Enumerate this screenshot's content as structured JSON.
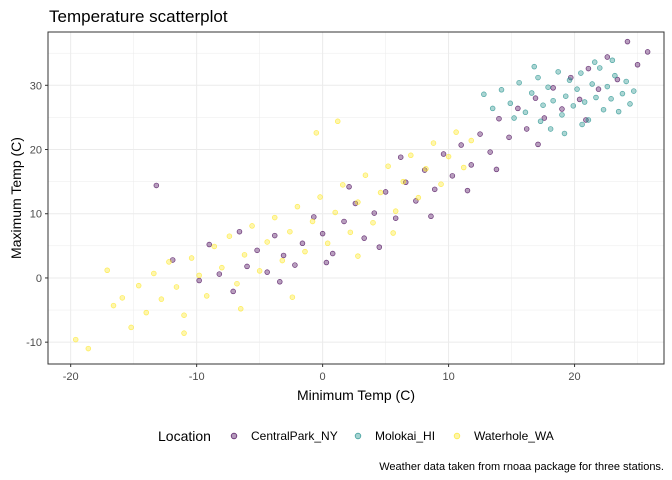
{
  "chart_data": {
    "type": "scatter",
    "title": "Temperature scatterplot",
    "xlabel": "Minimum Temp (C)",
    "ylabel": "Maximum Temp (C)",
    "caption": "Weather data taken from rnoaa package for three stations.",
    "xlim": [
      -21.8,
      27.1
    ],
    "ylim": [
      -13.4,
      38.3
    ],
    "x_ticks": [
      -20,
      -10,
      0,
      10,
      20
    ],
    "x_tick_labels": [
      "-20",
      "-10",
      "0",
      "10",
      "20"
    ],
    "y_ticks": [
      -10,
      0,
      10,
      20,
      30
    ],
    "y_tick_labels": [
      "-10",
      "0",
      "10",
      "20",
      "30"
    ],
    "grid": true,
    "legend": {
      "title": "Location",
      "position": "bottom"
    },
    "series": [
      {
        "name": "CentralPark_NY",
        "color": "#440154",
        "points": [
          [
            -13.2,
            14.4
          ],
          [
            -11.9,
            2.8
          ],
          [
            -9.8,
            -0.4
          ],
          [
            -8.2,
            0.6
          ],
          [
            -7.1,
            -2.1
          ],
          [
            -6.0,
            1.8
          ],
          [
            -5.2,
            4.3
          ],
          [
            -4.4,
            0.9
          ],
          [
            -3.8,
            6.6
          ],
          [
            -3.1,
            3.5
          ],
          [
            -2.2,
            2.0
          ],
          [
            -1.6,
            5.4
          ],
          [
            -0.7,
            9.5
          ],
          [
            0.0,
            6.9
          ],
          [
            0.8,
            3.8
          ],
          [
            1.7,
            8.8
          ],
          [
            2.6,
            11.6
          ],
          [
            3.3,
            6.2
          ],
          [
            4.1,
            10.1
          ],
          [
            5.0,
            13.4
          ],
          [
            5.8,
            9.3
          ],
          [
            6.6,
            14.9
          ],
          [
            7.4,
            12.0
          ],
          [
            8.1,
            16.8
          ],
          [
            8.9,
            13.8
          ],
          [
            9.6,
            19.3
          ],
          [
            10.3,
            15.9
          ],
          [
            11.0,
            20.7
          ],
          [
            11.8,
            17.6
          ],
          [
            12.5,
            22.4
          ],
          [
            13.3,
            19.6
          ],
          [
            14.0,
            24.8
          ],
          [
            14.8,
            21.9
          ],
          [
            15.5,
            26.4
          ],
          [
            16.2,
            23.2
          ],
          [
            16.9,
            28.0
          ],
          [
            17.6,
            24.9
          ],
          [
            18.3,
            29.6
          ],
          [
            19.0,
            26.3
          ],
          [
            19.7,
            31.2
          ],
          [
            20.4,
            27.8
          ],
          [
            21.1,
            32.6
          ],
          [
            21.9,
            29.4
          ],
          [
            22.6,
            34.4
          ],
          [
            23.4,
            30.9
          ],
          [
            24.2,
            36.8
          ],
          [
            25.0,
            33.2
          ],
          [
            25.8,
            35.2
          ],
          [
            -9.0,
            5.2
          ],
          [
            -6.6,
            7.2
          ],
          [
            2.1,
            14.2
          ],
          [
            6.2,
            18.8
          ],
          [
            11.5,
            13.6
          ],
          [
            13.8,
            16.9
          ],
          [
            17.1,
            20.8
          ],
          [
            20.9,
            24.6
          ],
          [
            -3.4,
            -0.6
          ],
          [
            0.3,
            2.4
          ],
          [
            4.5,
            4.8
          ],
          [
            8.6,
            9.6
          ]
        ]
      },
      {
        "name": "Molokai_HI",
        "color": "#21908C",
        "points": [
          [
            12.8,
            28.6
          ],
          [
            13.5,
            26.4
          ],
          [
            14.2,
            29.3
          ],
          [
            14.9,
            27.2
          ],
          [
            15.6,
            30.4
          ],
          [
            16.1,
            25.8
          ],
          [
            16.6,
            28.8
          ],
          [
            17.1,
            31.2
          ],
          [
            17.5,
            26.9
          ],
          [
            17.9,
            29.7
          ],
          [
            18.3,
            27.6
          ],
          [
            18.7,
            32.1
          ],
          [
            19.0,
            25.4
          ],
          [
            19.3,
            28.3
          ],
          [
            19.6,
            30.8
          ],
          [
            19.9,
            26.8
          ],
          [
            20.2,
            29.4
          ],
          [
            20.5,
            31.9
          ],
          [
            20.8,
            27.4
          ],
          [
            21.1,
            24.6
          ],
          [
            21.4,
            30.2
          ],
          [
            21.7,
            28.1
          ],
          [
            22.0,
            32.7
          ],
          [
            22.3,
            26.2
          ],
          [
            22.6,
            29.8
          ],
          [
            22.9,
            27.9
          ],
          [
            23.2,
            31.5
          ],
          [
            23.5,
            25.9
          ],
          [
            23.8,
            28.7
          ],
          [
            24.1,
            30.6
          ],
          [
            24.4,
            27.1
          ],
          [
            24.7,
            29.1
          ],
          [
            18.1,
            23.2
          ],
          [
            19.2,
            22.5
          ],
          [
            20.6,
            23.9
          ],
          [
            17.3,
            24.4
          ],
          [
            21.6,
            33.6
          ],
          [
            16.8,
            32.9
          ],
          [
            15.2,
            24.9
          ],
          [
            23.0,
            33.9
          ]
        ]
      },
      {
        "name": "Waterhole_WA",
        "color": "#FDE725",
        "points": [
          [
            -19.6,
            -9.6
          ],
          [
            -18.6,
            -11.0
          ],
          [
            -17.1,
            1.2
          ],
          [
            -16.6,
            -4.3
          ],
          [
            -15.9,
            -3.1
          ],
          [
            -15.2,
            -7.7
          ],
          [
            -14.6,
            -1.2
          ],
          [
            -14.0,
            -5.4
          ],
          [
            -13.4,
            0.7
          ],
          [
            -12.8,
            -3.3
          ],
          [
            -12.2,
            2.5
          ],
          [
            -11.6,
            -1.4
          ],
          [
            -11.0,
            -5.8
          ],
          [
            -10.4,
            3.1
          ],
          [
            -9.8,
            0.4
          ],
          [
            -9.2,
            -2.8
          ],
          [
            -8.6,
            4.9
          ],
          [
            -8.0,
            1.6
          ],
          [
            -7.4,
            6.5
          ],
          [
            -6.8,
            -0.9
          ],
          [
            -6.2,
            3.6
          ],
          [
            -5.6,
            8.1
          ],
          [
            -5.0,
            1.1
          ],
          [
            -4.4,
            5.6
          ],
          [
            -3.8,
            9.4
          ],
          [
            -3.2,
            2.7
          ],
          [
            -2.6,
            7.2
          ],
          [
            -2.0,
            11.1
          ],
          [
            -1.4,
            4.1
          ],
          [
            -0.8,
            8.8
          ],
          [
            -0.2,
            12.6
          ],
          [
            0.4,
            5.4
          ],
          [
            1.0,
            10.2
          ],
          [
            1.6,
            14.5
          ],
          [
            2.2,
            7.1
          ],
          [
            2.8,
            11.8
          ],
          [
            3.4,
            16.0
          ],
          [
            4.0,
            8.6
          ],
          [
            4.6,
            13.3
          ],
          [
            5.2,
            17.4
          ],
          [
            5.8,
            10.4
          ],
          [
            6.4,
            15.0
          ],
          [
            7.0,
            19.1
          ],
          [
            7.6,
            12.5
          ],
          [
            8.2,
            17.0
          ],
          [
            8.8,
            21.0
          ],
          [
            9.4,
            14.6
          ],
          [
            10.0,
            18.9
          ],
          [
            10.6,
            22.7
          ],
          [
            11.2,
            17.2
          ],
          [
            11.8,
            21.4
          ],
          [
            1.2,
            24.4
          ],
          [
            -0.5,
            22.6
          ],
          [
            -6.5,
            -4.8
          ],
          [
            2.8,
            3.4
          ],
          [
            -11.0,
            -8.6
          ],
          [
            5.6,
            7.0
          ],
          [
            -2.4,
            -3.0
          ]
        ]
      }
    ]
  }
}
